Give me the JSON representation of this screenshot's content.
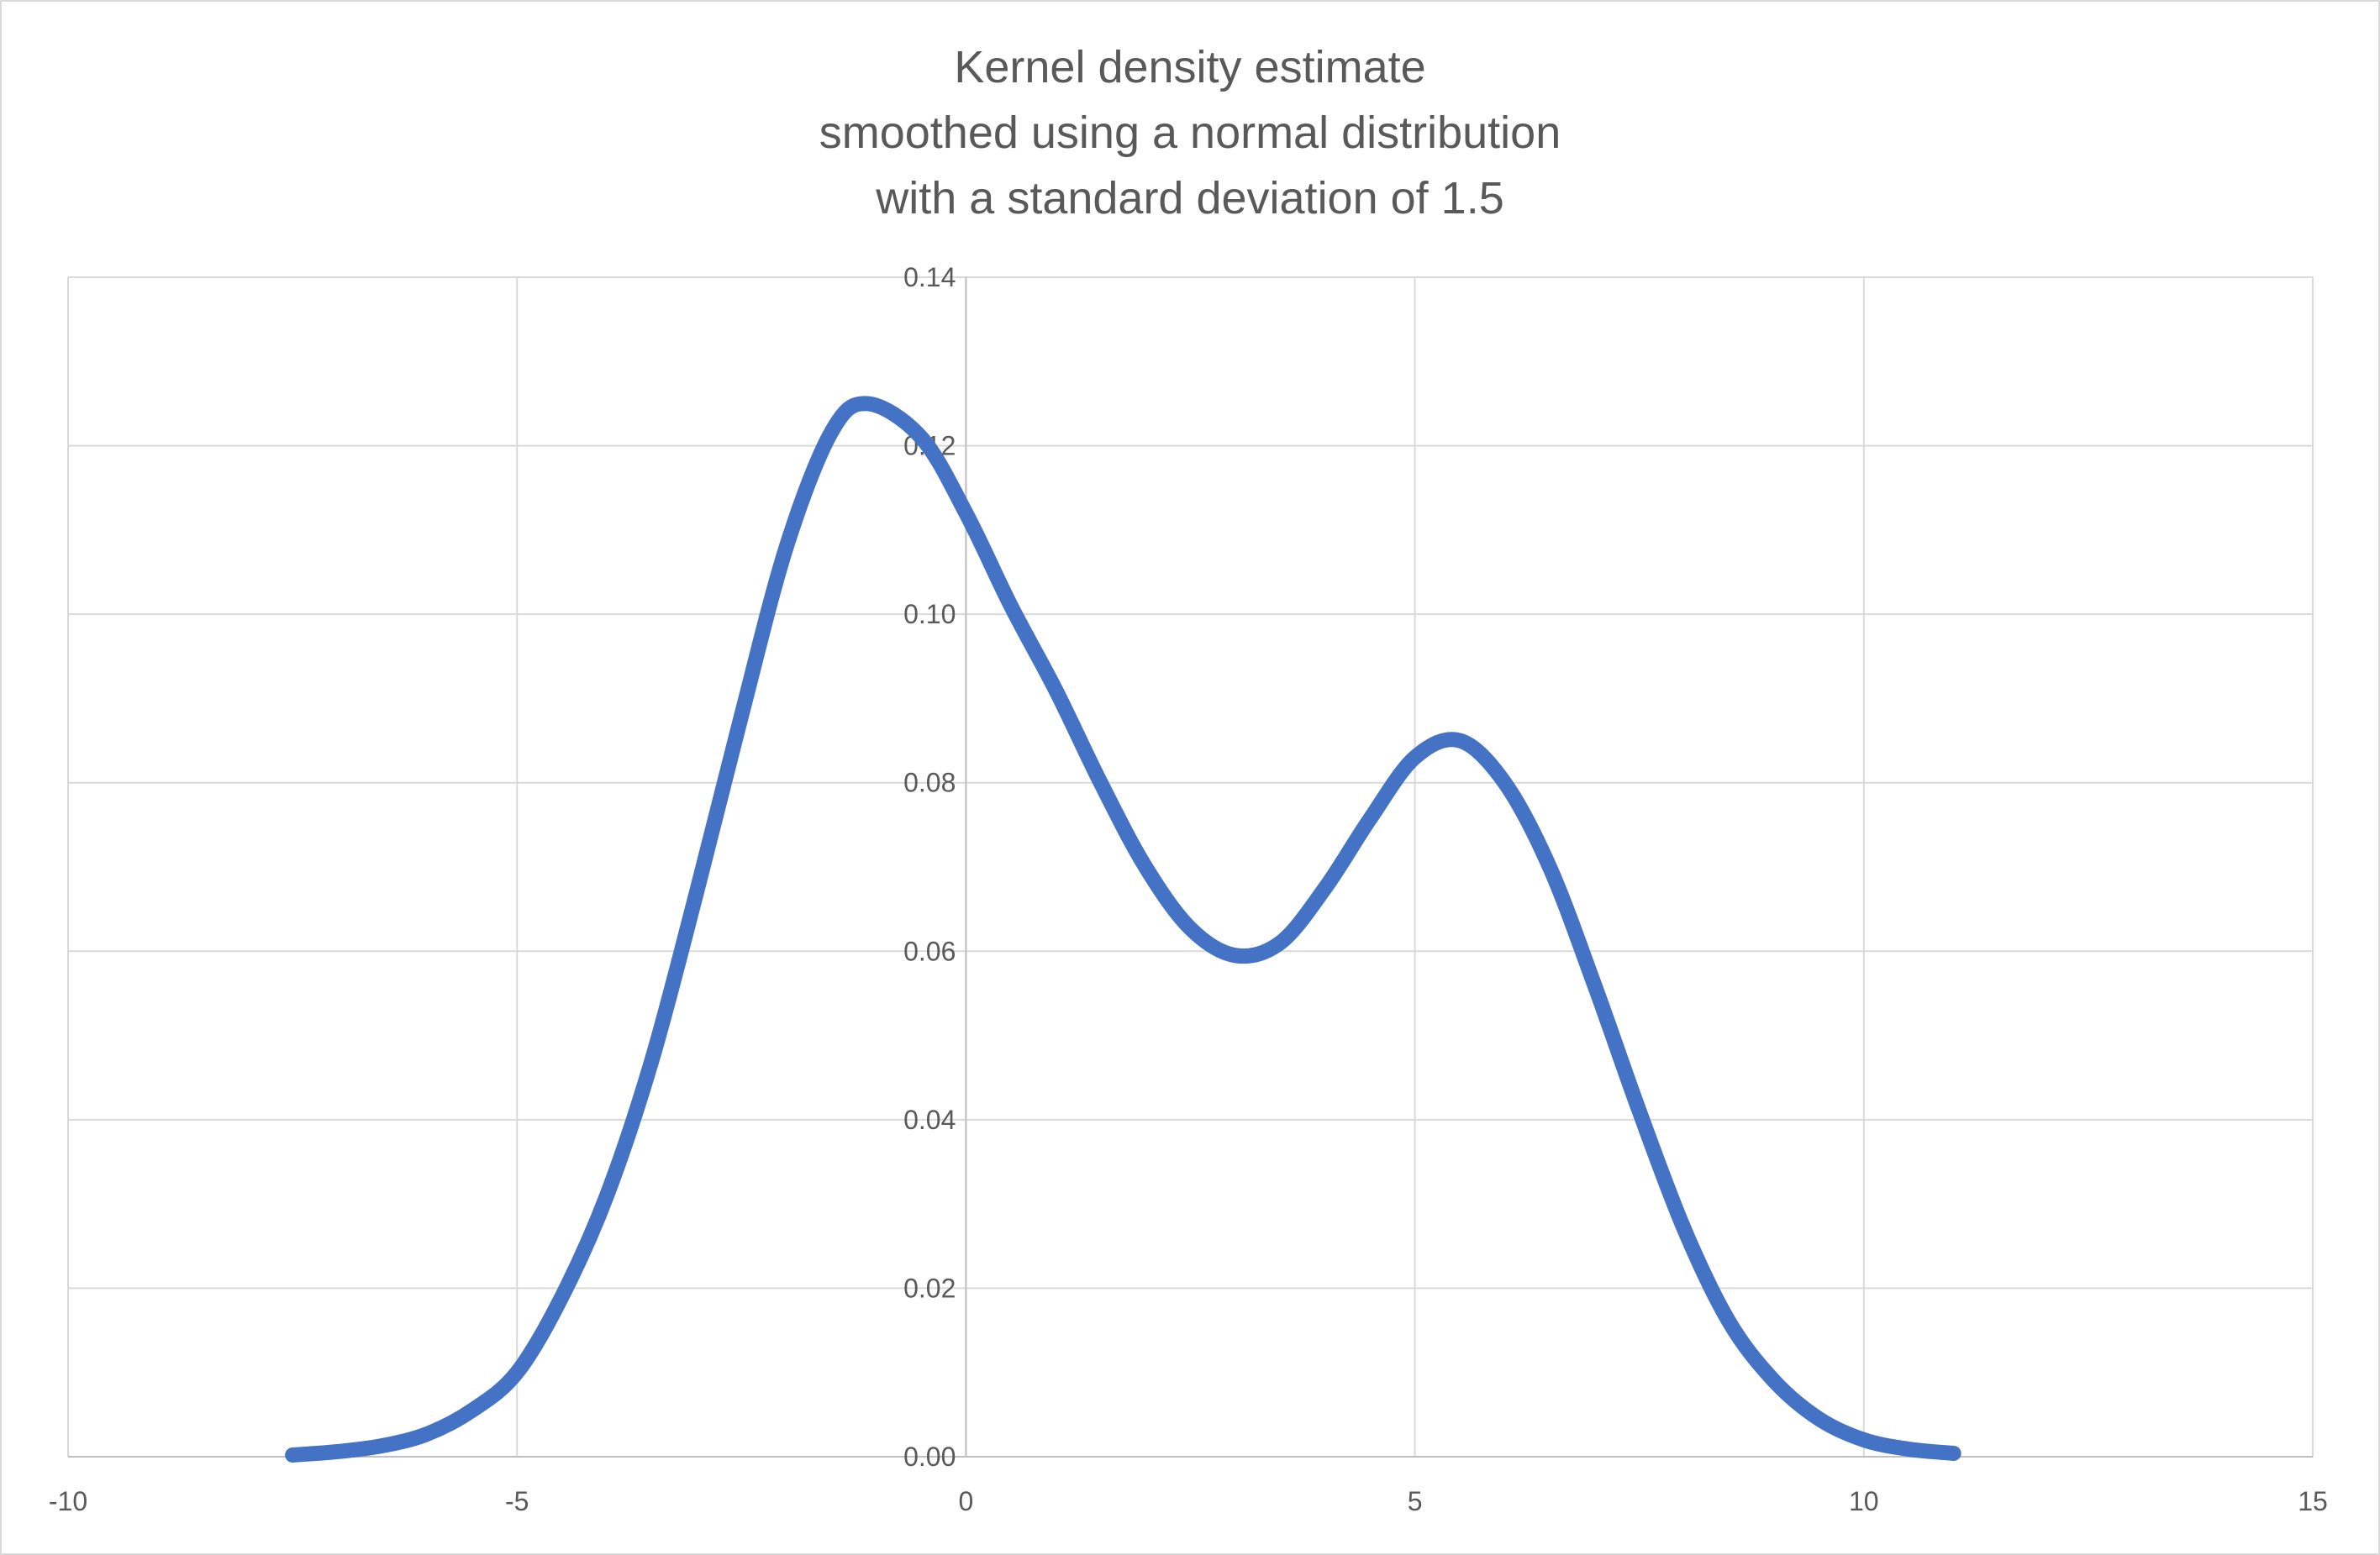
{
  "chart_data": {
    "type": "line",
    "title": [
      "Kernel density estimate",
      "smoothed using a normal distribution",
      "with a standard deviation of 1.5"
    ],
    "xlabel": "",
    "ylabel": "",
    "xlim": [
      -10,
      15
    ],
    "ylim": [
      0,
      0.14
    ],
    "xticks": [
      "-10",
      "-5",
      "0",
      "5",
      "10",
      "15"
    ],
    "xtick_values": [
      -10,
      -5,
      0,
      5,
      10,
      15
    ],
    "yticks": [
      "0.00",
      "0.02",
      "0.04",
      "0.06",
      "0.08",
      "0.10",
      "0.12",
      "0.14"
    ],
    "ytick_values": [
      0,
      0.02,
      0.04,
      0.06,
      0.08,
      0.1,
      0.12,
      0.14
    ],
    "grid": true,
    "legend": "none",
    "series": [
      {
        "color": "#4472C4",
        "x": [
          -7.5,
          -7,
          -6.5,
          -6,
          -5.5,
          -5,
          -4.5,
          -4,
          -3.5,
          -3,
          -2.5,
          -2,
          -1.5,
          -1.1,
          -0.5,
          0,
          0.5,
          1,
          1.5,
          2,
          2.5,
          3,
          3.5,
          4,
          4.5,
          5,
          5.5,
          6,
          6.5,
          7,
          7.5,
          8,
          8.5,
          9,
          9.5,
          10,
          10.5,
          11
        ],
        "y": [
          0.0002,
          0.0006,
          0.0013,
          0.0027,
          0.0055,
          0.01,
          0.019,
          0.031,
          0.047,
          0.067,
          0.088,
          0.108,
          0.1216,
          0.125,
          0.121,
          0.112,
          0.101,
          0.091,
          0.08,
          0.07,
          0.0627,
          0.0595,
          0.061,
          0.0675,
          0.0757,
          0.083,
          0.085,
          0.08,
          0.07,
          0.056,
          0.041,
          0.027,
          0.016,
          0.009,
          0.0045,
          0.002,
          0.0009,
          0.0004
        ]
      }
    ]
  }
}
